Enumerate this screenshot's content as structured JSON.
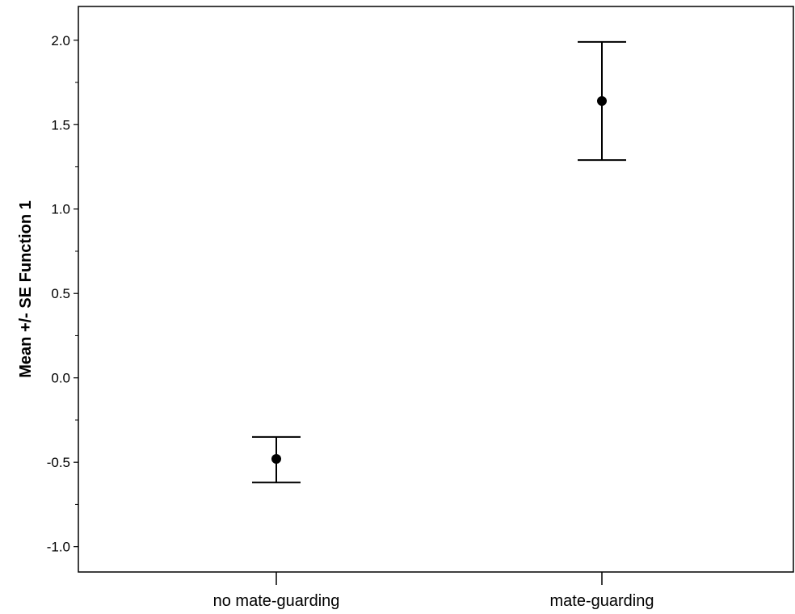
{
  "chart_data": {
    "type": "scatter",
    "subtype": "error-bar",
    "title": "",
    "xlabel": "",
    "ylabel": "Mean +/- SE Function 1",
    "categories": [
      "no mate-guarding",
      "mate-guarding"
    ],
    "points": [
      {
        "category": "no mate-guarding",
        "mean": -0.48,
        "se_low": -0.62,
        "se_high": -0.35
      },
      {
        "category": "mate-guarding",
        "mean": 1.64,
        "se_low": 1.29,
        "se_high": 1.99
      }
    ],
    "ylim": [
      -1.15,
      2.2
    ],
    "yticks": [
      -1.0,
      -0.5,
      0.0,
      0.5,
      1.0,
      1.5,
      2.0
    ],
    "ytick_labels": [
      "-1.0",
      "-0.5",
      "0.0",
      "0.5",
      "1.0",
      "1.5",
      "2.0"
    ],
    "grid": false,
    "legend": "none",
    "colors": {
      "marker": "#000000",
      "axis": "#000000",
      "background": "#ffffff"
    }
  }
}
